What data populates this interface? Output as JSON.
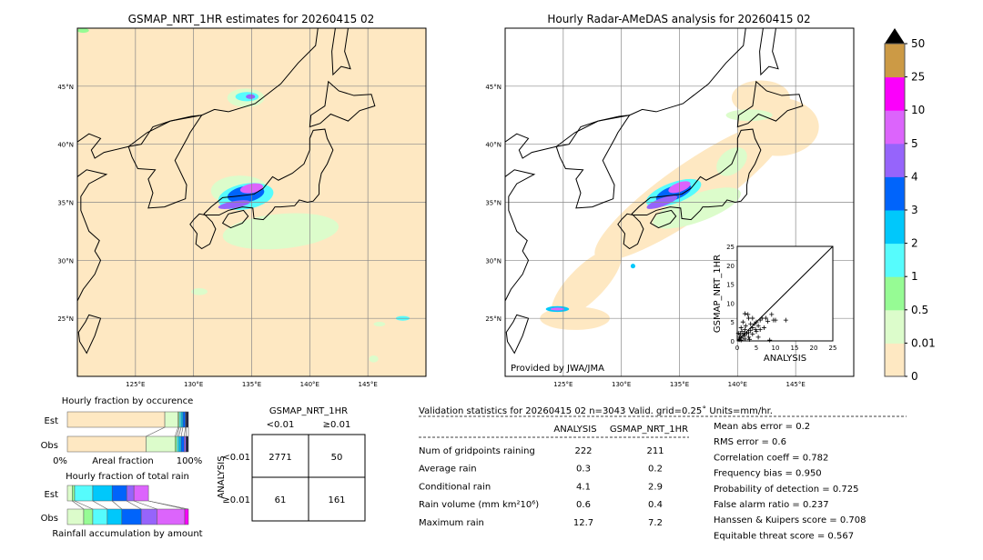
{
  "maps": [
    {
      "title": "GSMAP_NRT_1HR estimates for 20260415 02",
      "credit": ""
    },
    {
      "title": "Hourly Radar-AMeDAS analysis for 20260415 02",
      "credit": "Provided by JWA/JMA"
    }
  ],
  "map_extent": {
    "lon": [
      120,
      150
    ],
    "lat": [
      20,
      50
    ]
  },
  "lon_ticks": [
    "125°E",
    "130°E",
    "135°E",
    "140°E",
    "145°E"
  ],
  "lat_ticks": [
    "45°N",
    "40°N",
    "35°N",
    "30°N",
    "25°N"
  ],
  "colorbar": {
    "labels": [
      "0",
      "0.01",
      "0.5",
      "1",
      "2",
      "3",
      "4",
      "5",
      "10",
      "25",
      "50"
    ],
    "colors": [
      "#fee8c2",
      "#dcfccb",
      "#96fb94",
      "#56fcfd",
      "#00c8fb",
      "#0064fb",
      "#9664fb",
      "#dc64fc",
      "#fb00fb",
      "#cc9a45"
    ],
    "extend": "max"
  },
  "scatter": {
    "xlabel": "ANALYSIS",
    "ylabel": "GSMAP_NRT_1HR",
    "ticks": [
      "0",
      "5",
      "10",
      "15",
      "20",
      "25"
    ],
    "range": [
      0,
      25
    ],
    "points": [
      [
        0.5,
        0.3
      ],
      [
        1,
        0.8
      ],
      [
        1.5,
        1.2
      ],
      [
        2,
        1.5
      ],
      [
        2.5,
        2
      ],
      [
        3,
        2.2
      ],
      [
        0.8,
        1.8
      ],
      [
        1.2,
        2.5
      ],
      [
        2,
        3
      ],
      [
        3.5,
        2.8
      ],
      [
        4,
        3.5
      ],
      [
        4.5,
        4.5
      ],
      [
        5,
        5
      ],
      [
        5.5,
        4
      ],
      [
        6,
        5.5
      ],
      [
        4,
        6
      ],
      [
        3,
        6
      ],
      [
        2,
        7.2
      ],
      [
        2.8,
        7
      ],
      [
        1.5,
        5
      ],
      [
        1,
        3.5
      ],
      [
        0.3,
        2
      ],
      [
        0.5,
        0.5
      ],
      [
        1,
        0.2
      ],
      [
        2,
        0.5
      ],
      [
        3,
        1
      ],
      [
        4,
        1.8
      ],
      [
        5,
        2.5
      ],
      [
        6,
        3
      ],
      [
        7,
        3.5
      ],
      [
        7.5,
        6
      ],
      [
        8,
        5.2
      ],
      [
        9,
        7
      ],
      [
        9.5,
        5.5
      ],
      [
        10,
        5.5
      ],
      [
        12.7,
        5.5
      ],
      [
        6.5,
        6
      ],
      [
        5.5,
        1
      ],
      [
        8.5,
        0.2
      ],
      [
        3.5,
        4.5
      ],
      [
        2.2,
        4
      ],
      [
        1.8,
        2
      ],
      [
        0.6,
        1
      ],
      [
        4.8,
        3
      ],
      [
        3.2,
        0.4
      ]
    ]
  },
  "occurrence": {
    "title": "Hourly fraction by occurence",
    "rows": [
      {
        "label": "Est",
        "fractions": [
          0.805,
          0.11,
          0.01,
          0.015,
          0.015,
          0.02,
          0.005,
          0.02
        ]
      },
      {
        "label": "Obs",
        "fractions": [
          0.65,
          0.24,
          0.015,
          0.015,
          0.02,
          0.025,
          0.015,
          0.02
        ]
      }
    ],
    "axis_left": "0%",
    "axis_mid": "Areal fraction",
    "axis_right": "100%"
  },
  "total_rain": {
    "title": "Hourly fraction of total rain",
    "rows": [
      {
        "label": "Est",
        "fractions": [
          0.04,
          0.02,
          0.15,
          0.16,
          0.12,
          0.06,
          0.12,
          0
        ]
      },
      {
        "label": "Obs",
        "fractions": [
          0.135,
          0.075,
          0.12,
          0.12,
          0.16,
          0.13,
          0.23,
          0.03
        ]
      }
    ],
    "footer": "Rainfall accumulation by amount"
  },
  "contingency": {
    "title": "GSMAP_NRT_1HR",
    "col_labels": [
      "<0.01",
      "≥0.01"
    ],
    "row_title": "ANALYSIS",
    "row_labels": [
      "<0.01",
      "≥0.01"
    ],
    "cells": [
      [
        "2771",
        "50"
      ],
      [
        "61",
        "161"
      ]
    ]
  },
  "validation": {
    "title": "Validation statistics for 20260415 02  n=3043 Valid. grid=0.25˚ Units=mm/hr.",
    "col_headers": [
      "ANALYSIS",
      "GSMAP_NRT_1HR"
    ],
    "rows": [
      {
        "label": "Num of gridpoints raining",
        "analysis": "222",
        "gsmap": "211"
      },
      {
        "label": "Average rain",
        "analysis": "0.3",
        "gsmap": "0.2"
      },
      {
        "label": "Conditional rain",
        "analysis": "4.1",
        "gsmap": "2.9"
      },
      {
        "label": "Rain volume (mm km²10⁶)",
        "analysis": "0.6",
        "gsmap": "0.4"
      },
      {
        "label": "Maximum rain",
        "analysis": "12.7",
        "gsmap": "7.2"
      }
    ],
    "scores": [
      "Mean abs error =    0.2",
      "RMS error =    0.6",
      "Correlation coeff =  0.782",
      "Frequency bias =  0.950",
      "Probability of detection =  0.725",
      "False alarm ratio =  0.237",
      "Hanssen & Kuipers score =  0.708",
      "Equitable threat score =  0.567"
    ]
  }
}
